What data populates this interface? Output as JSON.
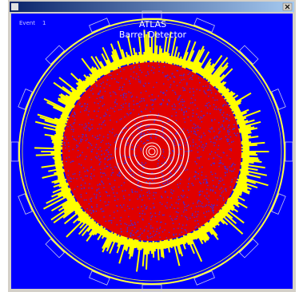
{
  "display": {
    "title": "ATLAS",
    "subtitle": "Barrel Detector",
    "event_label": "Event",
    "event_number": 1
  }
}
